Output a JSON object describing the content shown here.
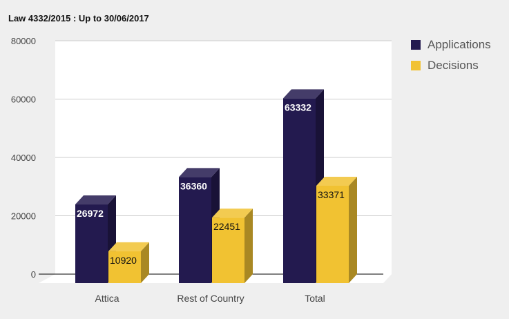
{
  "chart_data": {
    "type": "bar",
    "title": "Law 4332/2015 : Up to 30/06/2017",
    "categories": [
      "Attica",
      "Rest of Country",
      "Total"
    ],
    "series": [
      {
        "name": "Applications",
        "values": [
          26972,
          36360,
          63332
        ],
        "color": "#231a4f"
      },
      {
        "name": "Decisions",
        "values": [
          10920,
          22451,
          33371
        ],
        "color": "#f1c232"
      }
    ],
    "ylim": [
      0,
      80000
    ],
    "yticks": [
      "0",
      "20000",
      "40000",
      "60000",
      "80000"
    ],
    "grid": true,
    "legend_position": "top-right",
    "three_d": true
  }
}
